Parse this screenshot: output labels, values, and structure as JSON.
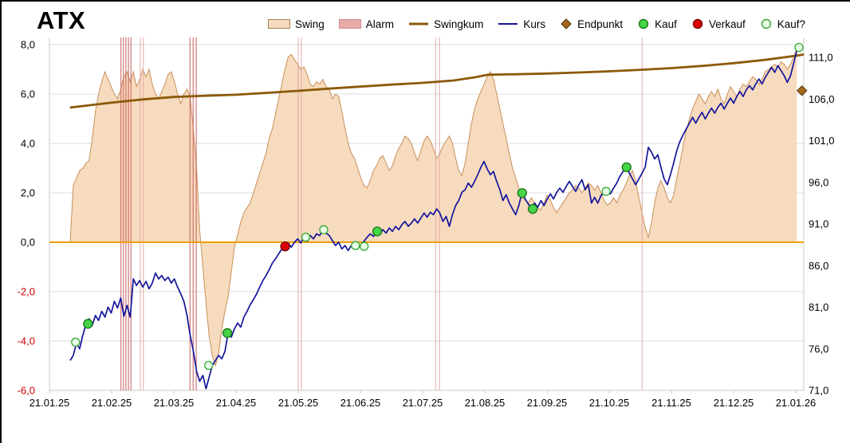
{
  "title": "ATX",
  "legend": {
    "items": [
      {
        "id": "swing",
        "label": "Swing",
        "symbol": "swatch",
        "fill": "#F6DBBE",
        "stroke": "#A8804F"
      },
      {
        "id": "alarm",
        "label": "Alarm",
        "symbol": "swatch",
        "fill": "#E9A9A9",
        "stroke": "#D08F8F"
      },
      {
        "id": "swingkum",
        "label": "Swingkum",
        "symbol": "line",
        "color": "#8B5A09",
        "width": 3
      },
      {
        "id": "kurs",
        "label": "Kurs",
        "symbol": "line",
        "color": "#14149B",
        "width": 2
      },
      {
        "id": "endpunkt",
        "label": "Endpunkt",
        "symbol": "diamond",
        "fill": "#A5681E",
        "stroke": "#4A2F05"
      },
      {
        "id": "kauf",
        "label": "Kauf",
        "symbol": "circle",
        "fill": "#46D546",
        "stroke": "#1E7A1E"
      },
      {
        "id": "verkauf",
        "label": "Verkauf",
        "symbol": "circle",
        "fill": "#DD0000",
        "stroke": "#7A0000"
      },
      {
        "id": "kauf-frage",
        "label": "Kauf?",
        "symbol": "circle",
        "fill": "#E8FFE8",
        "stroke": "#35A835"
      }
    ]
  },
  "colors": {
    "background": "#FFFFFF",
    "grid": "#DEDEDE",
    "frame": "#C9C9C9",
    "swing_fill": "#F6DBBE",
    "swing_edge": "#C99059",
    "swingkum": "#8B5A09",
    "kurs": "#14149B",
    "alarm": "#E6A9A9",
    "alarm_strong": "#C75C5C",
    "zero": "#EFA007",
    "kauf_fill": "#46D546",
    "kauf_stroke": "#1E7A1E",
    "verkauf_fill": "#DD0000",
    "verkauf_stroke": "#7A0000",
    "kaufq_fill": "#E8FFE8",
    "kaufq_stroke": "#35A835",
    "endpunkt_fill": "#A5681E",
    "endpunkt_stroke": "#4A2F05",
    "axis_text": "#000000",
    "negative_text": "#CC0000"
  },
  "chart_data": {
    "type": "line",
    "title": "ATX",
    "xlabel": "",
    "ylabel": "",
    "grid": "horizontal",
    "legend_position": "top",
    "legend": [
      "Swing",
      "Alarm",
      "Swingkum",
      "Kurs",
      "Endpunkt",
      "Kauf",
      "Verkauf",
      "Kauf?"
    ],
    "x_unit": "months since 21.01.25 (0 = 21.01.25, 12 = 21.01.26)",
    "x_ticks": [
      {
        "m": 0,
        "label": "21.01.25"
      },
      {
        "m": 1,
        "label": "21.02.25"
      },
      {
        "m": 2,
        "label": "21.03.25"
      },
      {
        "m": 3,
        "label": "21.04.25"
      },
      {
        "m": 4,
        "label": "21.05.25"
      },
      {
        "m": 5,
        "label": "21.06.25"
      },
      {
        "m": 6,
        "label": "21.07.25"
      },
      {
        "m": 7,
        "label": "21.08.25"
      },
      {
        "m": 8,
        "label": "21.09.25"
      },
      {
        "m": 9,
        "label": "21.10.25"
      },
      {
        "m": 10,
        "label": "21.11.25"
      },
      {
        "m": 11,
        "label": "21.12.25"
      },
      {
        "m": 12,
        "label": "21.01.26"
      }
    ],
    "left_axis": {
      "range": [
        -6.4,
        8.3
      ],
      "negative_label_color": "#CC0000",
      "ticks": [
        {
          "value": 8,
          "label": "8,0"
        },
        {
          "value": 6,
          "label": "6,0"
        },
        {
          "value": 4,
          "label": "4,0"
        },
        {
          "value": 2,
          "label": "2,0"
        },
        {
          "value": 0,
          "label": "0,0"
        },
        {
          "value": -2,
          "label": "-2,0"
        },
        {
          "value": -4,
          "label": "-4,0"
        },
        {
          "value": -6,
          "label": "-6,0"
        }
      ]
    },
    "right_axis": {
      "range": [
        70.9,
        112.8
      ],
      "ticks": [
        {
          "value": 111,
          "label": "111,0"
        },
        {
          "value": 106,
          "label": "106,0"
        },
        {
          "value": 101,
          "label": "101,0"
        },
        {
          "value": 96,
          "label": "96,0"
        },
        {
          "value": 91,
          "label": "91,0"
        },
        {
          "value": 86,
          "label": "86,0"
        },
        {
          "value": 81,
          "label": "81,0"
        },
        {
          "value": 76,
          "label": "76,0"
        },
        {
          "value": 71,
          "label": "71,0"
        }
      ]
    },
    "zero_line": {
      "axis": "left",
      "value": 0,
      "color": "#EFA007"
    },
    "series": {
      "swing": {
        "name": "Swing",
        "axis": "left",
        "type": "area",
        "x_start": 0.333,
        "x_step": 0.0508,
        "values": [
          0.0,
          2.3,
          2.6,
          2.9,
          3.0,
          3.2,
          3.3,
          4.2,
          5.3,
          6.0,
          6.5,
          6.9,
          6.6,
          6.3,
          6.0,
          5.8,
          6.2,
          6.7,
          6.9,
          6.5,
          6.9,
          6.3,
          6.6,
          7.0,
          6.7,
          7.0,
          6.4,
          6.0,
          5.8,
          6.1,
          6.4,
          6.8,
          6.9,
          6.5,
          6.0,
          5.6,
          6.0,
          6.2,
          5.9,
          4.5,
          3.0,
          0.5,
          -1.0,
          -2.5,
          -3.8,
          -4.6,
          -5.0,
          -4.5,
          -3.5,
          -2.8,
          -2.2,
          -1.2,
          -0.2,
          0.3,
          0.8,
          1.2,
          1.4,
          1.6,
          2.0,
          2.4,
          2.8,
          3.2,
          3.6,
          4.2,
          4.6,
          5.2,
          5.8,
          6.4,
          7.0,
          7.5,
          7.6,
          7.4,
          7.2,
          7.0,
          7.1,
          6.8,
          6.4,
          6.3,
          6.5,
          6.4,
          6.6,
          6.3,
          6.2,
          5.8,
          6.0,
          5.9,
          5.3,
          4.6,
          4.0,
          3.6,
          3.4,
          3.0,
          2.6,
          2.3,
          2.2,
          2.5,
          2.9,
          3.1,
          3.4,
          3.5,
          3.2,
          2.9,
          3.1,
          3.5,
          3.8,
          4.0,
          4.3,
          4.2,
          4.0,
          3.6,
          3.3,
          3.7,
          4.1,
          4.3,
          4.1,
          3.8,
          3.4,
          3.6,
          3.9,
          4.1,
          4.3,
          4.0,
          3.4,
          2.9,
          2.7,
          3.2,
          4.0,
          4.8,
          5.4,
          5.8,
          6.1,
          6.4,
          6.7,
          6.9,
          6.6,
          6.0,
          5.4,
          4.8,
          4.2,
          3.6,
          3.0,
          2.6,
          2.2,
          1.9,
          1.7,
          1.6,
          1.8,
          1.6,
          1.4,
          1.3,
          1.6,
          1.9,
          1.7,
          1.4,
          1.2,
          1.4,
          1.6,
          1.8,
          2.0,
          2.1,
          2.3,
          2.2,
          2.0,
          2.2,
          2.4,
          2.3,
          2.1,
          2.3,
          2.0,
          1.7,
          1.5,
          1.6,
          1.8,
          1.6,
          1.9,
          2.1,
          2.4,
          2.7,
          2.9,
          2.5,
          1.8,
          1.2,
          0.6,
          0.2,
          0.8,
          1.6,
          2.2,
          2.5,
          2.2,
          1.8,
          1.6,
          1.9,
          2.6,
          3.2,
          3.9,
          4.5,
          5.0,
          5.4,
          5.7,
          6.0,
          5.8,
          5.6,
          5.9,
          6.1,
          5.9,
          6.2,
          5.8,
          5.6,
          6.0,
          6.3,
          6.1,
          5.9,
          6.2,
          6.4,
          6.3,
          6.5,
          6.7,
          6.6,
          6.4,
          6.6,
          6.9,
          7.0,
          7.1,
          7.2,
          7.1,
          7.3,
          7.2,
          7.0,
          7.2,
          7.5,
          7.9
        ]
      },
      "swingkum": {
        "name": "Swingkum",
        "axis": "left",
        "type": "line",
        "points": [
          [
            0.33,
            5.45
          ],
          [
            1.0,
            5.65
          ],
          [
            1.5,
            5.78
          ],
          [
            2.0,
            5.88
          ],
          [
            2.5,
            5.93
          ],
          [
            3.0,
            5.97
          ],
          [
            3.5,
            6.05
          ],
          [
            4.0,
            6.13
          ],
          [
            4.5,
            6.22
          ],
          [
            5.0,
            6.3
          ],
          [
            5.5,
            6.38
          ],
          [
            6.0,
            6.45
          ],
          [
            6.5,
            6.55
          ],
          [
            6.85,
            6.68
          ],
          [
            7.05,
            6.78
          ],
          [
            7.5,
            6.8
          ],
          [
            8.0,
            6.83
          ],
          [
            8.5,
            6.87
          ],
          [
            9.0,
            6.92
          ],
          [
            9.5,
            6.98
          ],
          [
            10.0,
            7.05
          ],
          [
            10.5,
            7.14
          ],
          [
            11.0,
            7.25
          ],
          [
            11.5,
            7.38
          ],
          [
            12.0,
            7.55
          ],
          [
            12.13,
            7.6
          ]
        ]
      },
      "kurs": {
        "name": "Kurs",
        "axis": "right",
        "type": "line",
        "x_start": 0.333,
        "x_step": 0.0508,
        "values": [
          74.6,
          75.2,
          76.7,
          76.0,
          77.6,
          78.9,
          79.6,
          78.8,
          80.0,
          79.4,
          80.5,
          79.8,
          81.0,
          80.3,
          81.7,
          80.9,
          82.1,
          79.9,
          81.2,
          79.8,
          84.4,
          83.6,
          84.2,
          83.4,
          84.1,
          83.2,
          83.9,
          85.1,
          84.4,
          84.8,
          84.2,
          84.6,
          83.9,
          84.4,
          83.4,
          82.6,
          81.7,
          80.0,
          77.6,
          75.7,
          73.3,
          72.1,
          72.8,
          71.2,
          72.6,
          74.0,
          74.6,
          75.2,
          74.8,
          75.7,
          77.9,
          77.4,
          78.4,
          79.1,
          78.6,
          79.8,
          80.5,
          81.3,
          81.9,
          82.6,
          83.4,
          84.2,
          84.8,
          85.5,
          86.3,
          86.8,
          87.4,
          88.0,
          88.3,
          88.7,
          88.2,
          88.8,
          89.2,
          88.7,
          89.4,
          88.9,
          89.6,
          89.2,
          89.8,
          89.6,
          90.3,
          89.9,
          89.6,
          89.0,
          88.4,
          88.8,
          88.0,
          88.4,
          87.8,
          88.4,
          88.7,
          88.0,
          88.5,
          88.9,
          89.4,
          89.8,
          89.5,
          90.1,
          89.8,
          90.3,
          89.9,
          90.5,
          90.1,
          90.7,
          90.3,
          90.9,
          91.3,
          90.7,
          91.1,
          91.6,
          91.1,
          91.7,
          92.3,
          91.8,
          92.4,
          92.1,
          92.8,
          92.3,
          91.3,
          91.9,
          90.7,
          92.1,
          93.2,
          93.8,
          94.8,
          95.1,
          95.9,
          95.4,
          96.1,
          96.9,
          97.8,
          98.5,
          97.6,
          96.9,
          97.3,
          96.1,
          95.1,
          93.8,
          94.5,
          93.5,
          92.8,
          92.1,
          93.2,
          94.7,
          94.0,
          93.4,
          92.8,
          93.5,
          93.0,
          93.8,
          93.2,
          94.0,
          94.6,
          94.0,
          94.8,
          95.3,
          94.8,
          95.5,
          96.1,
          95.5,
          94.9,
          95.7,
          96.3,
          95.1,
          95.7,
          93.5,
          94.2,
          93.5,
          94.4,
          94.8,
          95.1,
          94.6,
          95.3,
          95.9,
          96.7,
          97.3,
          97.8,
          97.1,
          96.4,
          95.7,
          96.4,
          97.1,
          97.8,
          100.2,
          99.6,
          98.8,
          99.3,
          97.8,
          96.4,
          95.7,
          96.9,
          98.3,
          99.8,
          100.9,
          101.7,
          102.4,
          103.1,
          103.8,
          103.1,
          103.8,
          104.4,
          103.6,
          104.3,
          104.9,
          104.3,
          105.0,
          105.5,
          104.8,
          105.5,
          106.1,
          105.5,
          106.3,
          106.9,
          106.3,
          107.1,
          107.6,
          107.1,
          107.8,
          108.4,
          107.8,
          108.6,
          109.2,
          109.8,
          109.2,
          110.0,
          109.4,
          108.8,
          108.0,
          108.8,
          110.3,
          111.8,
          112.3
        ]
      }
    },
    "markers": {
      "kauf": [
        [
          0.62,
          79.0
        ],
        [
          2.86,
          77.9
        ],
        [
          5.27,
          90.1
        ],
        [
          7.6,
          94.7
        ],
        [
          7.77,
          92.8
        ],
        [
          9.28,
          97.8
        ]
      ],
      "verkauf": [
        [
          3.79,
          88.3
        ]
      ],
      "kauf_frage": [
        [
          0.42,
          76.8
        ],
        [
          2.56,
          74.0
        ],
        [
          4.12,
          89.4
        ],
        [
          4.41,
          90.3
        ],
        [
          4.92,
          88.4
        ],
        [
          5.06,
          88.3
        ],
        [
          8.95,
          94.9
        ],
        [
          12.05,
          112.2
        ]
      ],
      "endpunkt": [
        [
          12.1,
          107.0
        ]
      ]
    },
    "alarms": [
      {
        "m": 1.15,
        "strong": true
      },
      {
        "m": 1.19,
        "strong": true
      },
      {
        "m": 1.23,
        "strong": true
      },
      {
        "m": 1.27,
        "strong": true
      },
      {
        "m": 1.31,
        "strong": true
      },
      {
        "m": 1.46,
        "strong": false
      },
      {
        "m": 1.51,
        "strong": false
      },
      {
        "m": 2.26,
        "strong": true
      },
      {
        "m": 2.31,
        "strong": true
      },
      {
        "m": 2.36,
        "strong": true
      },
      {
        "m": 4.0,
        "strong": false
      },
      {
        "m": 4.05,
        "strong": false
      },
      {
        "m": 6.21,
        "strong": false
      },
      {
        "m": 6.27,
        "strong": false
      },
      {
        "m": 9.53,
        "strong": false
      }
    ]
  }
}
